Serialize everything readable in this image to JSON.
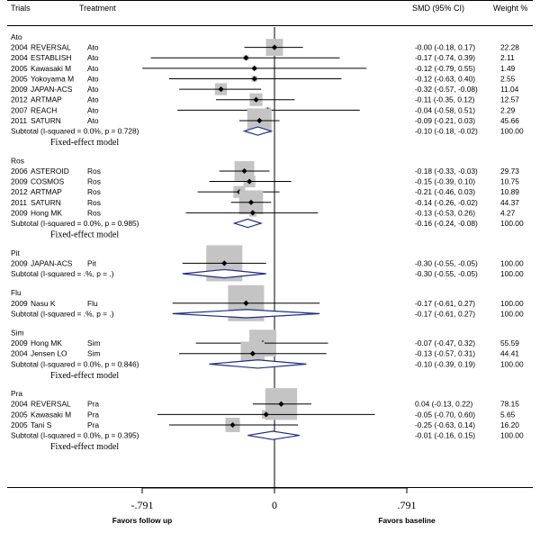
{
  "chart_data": {
    "type": "forest",
    "headers": {
      "trials": "Trials",
      "treatment": "Treatment",
      "smd": "SMD (95%  CI)",
      "weight": "Weight %"
    },
    "axis": {
      "range": [
        -0.791,
        0.791
      ],
      "ticks": [
        {
          "value": -0.791,
          "label": "-.791"
        },
        {
          "value": 0,
          "label": "0"
        },
        {
          "value": 0.791,
          "label": ".791"
        }
      ],
      "left_label": "Favors follow up",
      "right_label": "Favors baseline"
    },
    "groups": [
      {
        "name": "Ato",
        "model_label": "Fixed-effect model",
        "studies": [
          {
            "year": "2004",
            "trial": "REVERSAL",
            "treatment": "Ato",
            "smd": -0.0,
            "lo": -0.18,
            "hi": 0.17,
            "ci_text": "-0.00 (-0.18, 0.17)",
            "weight": "22.28",
            "w": 22.28
          },
          {
            "year": "2004",
            "trial": "ESTABLISH",
            "treatment": "Ato",
            "smd": -0.17,
            "lo": -0.74,
            "hi": 0.39,
            "ci_text": "-0.17 (-0.74, 0.39)",
            "weight": "2.11",
            "w": 2.11
          },
          {
            "year": "2005",
            "trial": "Kawasaki M",
            "treatment": "Ato",
            "smd": -0.12,
            "lo": -0.79,
            "hi": 0.55,
            "ci_text": "-0.12 (-0.79, 0.55)",
            "weight": "1.49",
            "w": 1.49
          },
          {
            "year": "2005",
            "trial": "Yokoyama M",
            "treatment": "Ato",
            "smd": -0.12,
            "lo": -0.63,
            "hi": 0.4,
            "ci_text": "-0.12 (-0.63, 0.40)",
            "weight": "2.55",
            "w": 2.55
          },
          {
            "year": "2009",
            "trial": "JAPAN-ACS",
            "treatment": "Ato",
            "smd": -0.32,
            "lo": -0.57,
            "hi": -0.08,
            "ci_text": "-0.32 (-0.57, -0.08)",
            "weight": "11.04",
            "w": 11.04
          },
          {
            "year": "2012",
            "trial": "ARTMAP",
            "treatment": "Ato",
            "smd": -0.11,
            "lo": -0.35,
            "hi": 0.12,
            "ci_text": "-0.11 (-0.35, 0.12)",
            "weight": "12.57",
            "w": 12.57
          },
          {
            "year": "2007",
            "trial": "REACH",
            "treatment": "Ato",
            "smd": -0.04,
            "lo": -0.58,
            "hi": 0.51,
            "ci_text": "-0.04 (-0.58, 0.51)",
            "weight": "2.29",
            "w": 2.29
          },
          {
            "year": "2011",
            "trial": "SATURN",
            "treatment": "Ato",
            "smd": -0.09,
            "lo": -0.21,
            "hi": 0.03,
            "ci_text": "-0.09 (-0.21, 0.03)",
            "weight": "45.66",
            "w": 45.66
          }
        ],
        "subtotal": {
          "label": "Subtotal  (I-squared = 0.0%, p = 0.728)",
          "smd": -0.1,
          "lo": -0.18,
          "hi": -0.02,
          "ci_text": "-0.10 (-0.18, -0.02)",
          "weight": "100.00"
        }
      },
      {
        "name": "Ros",
        "model_label": "Fixed-effect model",
        "studies": [
          {
            "year": "2006",
            "trial": "ASTEROID",
            "treatment": "Ros",
            "smd": -0.18,
            "lo": -0.33,
            "hi": -0.03,
            "ci_text": "-0.18 (-0.33, -0.03)",
            "weight": "29.73",
            "w": 29.73
          },
          {
            "year": "2009",
            "trial": "COSMOS",
            "treatment": "Ros",
            "smd": -0.15,
            "lo": -0.39,
            "hi": 0.1,
            "ci_text": "-0.15 (-0.39, 0.10)",
            "weight": "10.75",
            "w": 10.75
          },
          {
            "year": "2012",
            "trial": "ARTMAP",
            "treatment": "Ros",
            "smd": -0.21,
            "lo": -0.46,
            "hi": 0.03,
            "ci_text": "-0.21 (-0.46, 0.03)",
            "weight": "10.89",
            "w": 10.89
          },
          {
            "year": "2011",
            "trial": "SATURN",
            "treatment": "Ros",
            "smd": -0.14,
            "lo": -0.26,
            "hi": -0.02,
            "ci_text": "-0.14 (-0.26, -0.02)",
            "weight": "44.37",
            "w": 44.37
          },
          {
            "year": "2009",
            "trial": "Hong MK",
            "treatment": "Ros",
            "smd": -0.13,
            "lo": -0.53,
            "hi": 0.26,
            "ci_text": "-0.13 (-0.53, 0.26)",
            "weight": "4.27",
            "w": 4.27
          }
        ],
        "subtotal": {
          "label": "Subtotal  (I-squared = 0.0%, p = 0.985)",
          "smd": -0.16,
          "lo": -0.24,
          "hi": -0.08,
          "ci_text": "-0.16 (-0.24, -0.08)",
          "weight": "100.00"
        }
      },
      {
        "name": "Pit",
        "model_label": "",
        "studies": [
          {
            "year": "2009",
            "trial": "JAPAN-ACS",
            "treatment": "Pit",
            "smd": -0.3,
            "lo": -0.55,
            "hi": -0.05,
            "ci_text": "-0.30 (-0.55, -0.05)",
            "weight": "100.00",
            "w": 100
          }
        ],
        "subtotal": {
          "label": "Subtotal  (I-squared = .%, p = .)",
          "smd": -0.3,
          "lo": -0.55,
          "hi": -0.05,
          "ci_text": "-0.30 (-0.55, -0.05)",
          "weight": "100.00"
        }
      },
      {
        "name": "Flu",
        "model_label": "",
        "studies": [
          {
            "year": "2009",
            "trial": "Nasu K",
            "treatment": "Flu",
            "smd": -0.17,
            "lo": -0.61,
            "hi": 0.27,
            "ci_text": "-0.17 (-0.61, 0.27)",
            "weight": "100.00",
            "w": 100
          }
        ],
        "subtotal": {
          "label": "Subtotal  (I-squared = .%, p = .)",
          "smd": -0.17,
          "lo": -0.61,
          "hi": 0.27,
          "ci_text": "-0.17 (-0.61, 0.27)",
          "weight": "100.00"
        }
      },
      {
        "name": "Sim",
        "model_label": "Fixed-effect model",
        "studies": [
          {
            "year": "2009",
            "trial": "Hong MK",
            "treatment": "Sim",
            "smd": -0.07,
            "lo": -0.47,
            "hi": 0.32,
            "ci_text": "-0.07 (-0.47, 0.32)",
            "weight": "55.59",
            "w": 55.59
          },
          {
            "year": "2004",
            "trial": "Jensen LO",
            "treatment": "Sim",
            "smd": -0.13,
            "lo": -0.57,
            "hi": 0.31,
            "ci_text": "-0.13 (-0.57, 0.31)",
            "weight": "44.41",
            "w": 44.41
          }
        ],
        "subtotal": {
          "label": "Subtotal  (I-squared = 0.0%, p = 0.846)",
          "smd": -0.1,
          "lo": -0.39,
          "hi": 0.19,
          "ci_text": "-0.10 (-0.39, 0.19)",
          "weight": "100.00"
        }
      },
      {
        "name": "Pra",
        "model_label": "Fixed-effect model",
        "studies": [
          {
            "year": "2004",
            "trial": "REVERSAL",
            "treatment": "Pra",
            "smd": 0.04,
            "lo": -0.13,
            "hi": 0.22,
            "ci_text": "0.04 (-0.13, 0.22)",
            "weight": "78.15",
            "w": 78.15
          },
          {
            "year": "2005",
            "trial": "Kawasaki M",
            "treatment": "Pra",
            "smd": -0.05,
            "lo": -0.7,
            "hi": 0.6,
            "ci_text": "-0.05 (-0.70, 0.60)",
            "weight": "5.65",
            "w": 5.65
          },
          {
            "year": "2005",
            "trial": "Tani S",
            "treatment": "Pra",
            "smd": -0.25,
            "lo": -0.63,
            "hi": 0.14,
            "ci_text": "-0.25 (-0.63, 0.14)",
            "weight": "16.20",
            "w": 16.2
          }
        ],
        "subtotal": {
          "label": "Subtotal  (I-squared = 0.0%, p = 0.395)",
          "smd": -0.01,
          "lo": -0.16,
          "hi": 0.15,
          "ci_text": "-0.01 (-0.16, 0.15)",
          "weight": "100.00"
        }
      }
    ],
    "colors": {
      "weight_box": "#c4c4c4",
      "diamond": "#1f2d8a",
      "line": "#000000"
    }
  }
}
